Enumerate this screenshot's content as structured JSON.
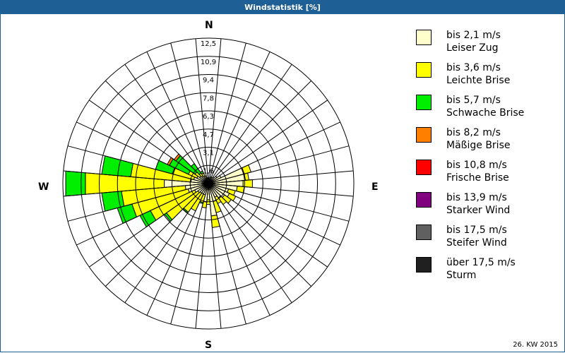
{
  "header": {
    "title": "Windstatistik [%]"
  },
  "footer": {
    "period": "26. KW 2015"
  },
  "compass": {
    "n": "N",
    "e": "E",
    "s": "S",
    "w": "W"
  },
  "legend": [
    {
      "speed": "bis 2,1 m/s",
      "name": "Leiser Zug",
      "color": "#ffffcc"
    },
    {
      "speed": "bis 3,6 m/s",
      "name": "Leichte Brise",
      "color": "#ffff00"
    },
    {
      "speed": "bis 5,7 m/s",
      "name": "Schwache Brise",
      "color": "#00ee00"
    },
    {
      "speed": "bis 8,2 m/s",
      "name": "Mäßige Brise",
      "color": "#ff8000"
    },
    {
      "speed": "bis 10,8 m/s",
      "name": "Frische Brise",
      "color": "#ff0000"
    },
    {
      "speed": "bis 13,9 m/s",
      "name": "Starker Wind",
      "color": "#800080"
    },
    {
      "speed": "bis 17,5 m/s",
      "name": "Steifer Wind",
      "color": "#606060"
    },
    {
      "speed": "über 17,5 m/s",
      "name": "Sturm",
      "color": "#202020"
    }
  ],
  "chart_data": {
    "type": "wind-rose",
    "title": "Windstatistik [%]",
    "subtitle": "26. KW 2015",
    "unit": "%",
    "rings": [
      "1,6",
      "3,1",
      "4,7",
      "6,3",
      "7,8",
      "9,4",
      "10,9",
      "12,5"
    ],
    "rmax": 12.5,
    "sector_width_deg": 10,
    "series_names": [
      "Leiser Zug",
      "Leichte Brise",
      "Schwache Brise",
      "Mäßige Brise",
      "Frische Brise",
      "Starker Wind",
      "Steifer Wind",
      "Sturm"
    ],
    "sectors": [
      {
        "dir": 0,
        "values": [
          0.4,
          0.1,
          0,
          0,
          0,
          0,
          0,
          0
        ]
      },
      {
        "dir": 10,
        "values": [
          0.5,
          0,
          0,
          0,
          0,
          0,
          0,
          0
        ]
      },
      {
        "dir": 20,
        "values": [
          0.6,
          0,
          0,
          0,
          0,
          0,
          0,
          0
        ]
      },
      {
        "dir": 30,
        "values": [
          0.6,
          0,
          0,
          0,
          0,
          0,
          0,
          0
        ]
      },
      {
        "dir": 40,
        "values": [
          0.7,
          0,
          0,
          0,
          0,
          0,
          0,
          0
        ]
      },
      {
        "dir": 50,
        "values": [
          0.9,
          0,
          0,
          0,
          0,
          0,
          0,
          0
        ]
      },
      {
        "dir": 60,
        "values": [
          1.2,
          0,
          0,
          0,
          0,
          0,
          0,
          0
        ]
      },
      {
        "dir": 70,
        "values": [
          3.2,
          0.6,
          0,
          0,
          0,
          0,
          0,
          0
        ]
      },
      {
        "dir": 80,
        "values": [
          3.2,
          0.3,
          0,
          0,
          0,
          0,
          0,
          0
        ]
      },
      {
        "dir": 90,
        "values": [
          3.0,
          0.8,
          0,
          0,
          0,
          0,
          0,
          0
        ]
      },
      {
        "dir": 100,
        "values": [
          2.5,
          0.6,
          0,
          0,
          0,
          0,
          0,
          0
        ]
      },
      {
        "dir": 110,
        "values": [
          1.8,
          0.6,
          0,
          0,
          0,
          0,
          0,
          0
        ]
      },
      {
        "dir": 120,
        "values": [
          2.0,
          0.6,
          0,
          0,
          0,
          0,
          0,
          0
        ]
      },
      {
        "dir": 130,
        "values": [
          1.7,
          0.7,
          0,
          0,
          0,
          0,
          0,
          0
        ]
      },
      {
        "dir": 140,
        "values": [
          1.5,
          0.7,
          0,
          0,
          0,
          0,
          0,
          0
        ]
      },
      {
        "dir": 150,
        "values": [
          1.3,
          0.6,
          0,
          0,
          0,
          0,
          0,
          0
        ]
      },
      {
        "dir": 160,
        "values": [
          1.6,
          1.0,
          0,
          0,
          0,
          0,
          0,
          0
        ]
      },
      {
        "dir": 170,
        "values": [
          2.8,
          1.0,
          0,
          0,
          0,
          0,
          0,
          0
        ]
      },
      {
        "dir": 180,
        "values": [
          1.4,
          0.4,
          0,
          0,
          0,
          0,
          0,
          0
        ]
      },
      {
        "dir": 190,
        "values": [
          1.6,
          0.5,
          0,
          0,
          0,
          0,
          0,
          0
        ]
      },
      {
        "dir": 200,
        "values": [
          1.0,
          0.7,
          0.1,
          0,
          0,
          0,
          0,
          0
        ]
      },
      {
        "dir": 210,
        "values": [
          1.0,
          1.6,
          0,
          0,
          0,
          0,
          0,
          0
        ]
      },
      {
        "dir": 220,
        "values": [
          1.0,
          2.0,
          0.1,
          0,
          0,
          0,
          0,
          0
        ]
      },
      {
        "dir": 230,
        "values": [
          1.1,
          3.3,
          0.2,
          0,
          0,
          0,
          0,
          0
        ]
      },
      {
        "dir": 240,
        "values": [
          1.3,
          4.2,
          1.0,
          0,
          0,
          0,
          0,
          0
        ]
      },
      {
        "dir": 250,
        "values": [
          1.8,
          5.0,
          1.3,
          0,
          0,
          0,
          0,
          0
        ]
      },
      {
        "dir": 260,
        "values": [
          2.0,
          5.5,
          1.7,
          0,
          0,
          0,
          0,
          0
        ]
      },
      {
        "dir": 270,
        "values": [
          3.8,
          6.8,
          1.7,
          0,
          0,
          0,
          0,
          0
        ]
      },
      {
        "dir": 280,
        "values": [
          1.5,
          5.2,
          2.5,
          0,
          0,
          0,
          0,
          0
        ]
      },
      {
        "dir": 290,
        "values": [
          1.3,
          1.9,
          1.5,
          0,
          0,
          0,
          0,
          0
        ]
      },
      {
        "dir": 300,
        "values": [
          1.1,
          0.8,
          1.8,
          0.2,
          0,
          0,
          0,
          0
        ]
      },
      {
        "dir": 310,
        "values": [
          0.9,
          0.5,
          2.0,
          0.2,
          0,
          0,
          0,
          0
        ]
      },
      {
        "dir": 320,
        "values": [
          0.8,
          0.3,
          1.0,
          0,
          0,
          0,
          0,
          0
        ]
      },
      {
        "dir": 330,
        "values": [
          0.7,
          0.3,
          0.2,
          0,
          0,
          0,
          0,
          0
        ]
      },
      {
        "dir": 340,
        "values": [
          0.5,
          0.2,
          0,
          0,
          0,
          0,
          0,
          0
        ]
      },
      {
        "dir": 350,
        "values": [
          0.4,
          0.1,
          0,
          0,
          0,
          0,
          0,
          0
        ]
      }
    ]
  }
}
